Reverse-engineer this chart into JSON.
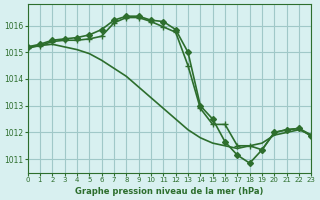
{
  "title": "Graphe pression niveau de la mer (hPa)",
  "bg_color": "#d8f0f0",
  "grid_color": "#a0c8c8",
  "line_color": "#2d6e2d",
  "xlim": [
    0,
    23
  ],
  "ylim": [
    1010.5,
    1016.8
  ],
  "yticks": [
    1011,
    1012,
    1013,
    1014,
    1015,
    1016
  ],
  "xticks": [
    0,
    1,
    2,
    3,
    4,
    5,
    6,
    7,
    8,
    9,
    10,
    11,
    12,
    13,
    14,
    15,
    16,
    17,
    18,
    19,
    20,
    21,
    22,
    23
  ],
  "series": [
    {
      "x": [
        0,
        1,
        2,
        3,
        4,
        5,
        6,
        7,
        8,
        9,
        10,
        11,
        12,
        13,
        14,
        15,
        16,
        17,
        18,
        19,
        20,
        21,
        22,
        23
      ],
      "y": [
        1015.2,
        1015.25,
        1015.3,
        1015.2,
        1015.1,
        1014.95,
        1014.7,
        1014.4,
        1014.1,
        1013.7,
        1013.3,
        1012.9,
        1012.5,
        1012.1,
        1011.8,
        1011.6,
        1011.5,
        1011.4,
        1011.5,
        1011.6,
        1011.9,
        1012.0,
        1012.1,
        1011.9
      ],
      "marker": null,
      "lw": 1.2
    },
    {
      "x": [
        0,
        1,
        2,
        3,
        4,
        5,
        6,
        7,
        8,
        9,
        10,
        11,
        12,
        13,
        14,
        15,
        16,
        17,
        18,
        19,
        20,
        21,
        22,
        23
      ],
      "y": [
        1015.2,
        1015.3,
        1015.45,
        1015.5,
        1015.55,
        1015.65,
        1015.85,
        1016.2,
        1016.35,
        1016.35,
        1016.2,
        1016.15,
        1015.85,
        1015.0,
        1013.0,
        1012.5,
        1011.65,
        1011.15,
        1010.85,
        1011.35,
        1012.0,
        1012.1,
        1012.15,
        1011.85
      ],
      "marker": "D",
      "markersize": 3.0,
      "lw": 1.2
    },
    {
      "x": [
        0,
        1,
        2,
        3,
        4,
        5,
        6,
        7,
        8,
        9,
        10,
        11,
        12,
        13,
        14,
        15,
        16,
        17,
        18,
        19,
        20,
        21,
        22,
        23
      ],
      "y": [
        1015.15,
        1015.25,
        1015.4,
        1015.45,
        1015.45,
        1015.5,
        1015.6,
        1016.1,
        1016.3,
        1016.3,
        1016.15,
        1015.95,
        1015.75,
        1014.5,
        1012.9,
        1012.3,
        1012.3,
        1011.5,
        1011.5,
        1011.35,
        1012.0,
        1012.1,
        1012.15,
        1011.9
      ],
      "marker": "+",
      "markersize": 4.5,
      "lw": 1.2
    }
  ]
}
